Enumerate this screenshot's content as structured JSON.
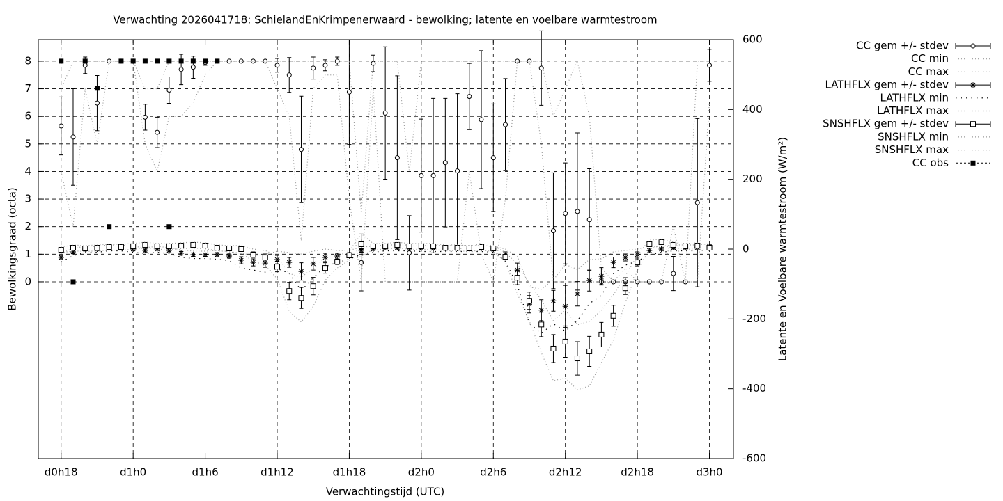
{
  "chart_data": {
    "type": "line",
    "title": "Verwachting 2026041718: SchielandEnKrimpenerwaard - bewolking; latente en voelbare warmtestroom",
    "x_label": "Verwachtingstijd (UTC)",
    "y_label": "Bewolkingsgraad (octa)",
    "y2_label": "Latente en Voelbare warmtestroom (W/m²)",
    "x": [
      18,
      19,
      20,
      21,
      22,
      23,
      24,
      25,
      26,
      27,
      28,
      29,
      30,
      31,
      32,
      33,
      34,
      35,
      36,
      37,
      38,
      39,
      40,
      41,
      42,
      43,
      44,
      45,
      46,
      47,
      48,
      49,
      50,
      51,
      52,
      53,
      54,
      55,
      56,
      57,
      58,
      59,
      60,
      61,
      62,
      63,
      64,
      65,
      66,
      67,
      68,
      69,
      70,
      71,
      72
    ],
    "xlim": [
      16.1,
      74
    ],
    "ylim": [
      -6.41,
      8.78
    ],
    "y2lim": [
      -600,
      600
    ],
    "xticks": [
      {
        "value": 18,
        "label": "d0h18"
      },
      {
        "value": 24,
        "label": "d1h0"
      },
      {
        "value": 30,
        "label": "d1h6"
      },
      {
        "value": 36,
        "label": "d1h12"
      },
      {
        "value": 42,
        "label": "d1h18"
      },
      {
        "value": 48,
        "label": "d2h0"
      },
      {
        "value": 54,
        "label": "d2h6"
      },
      {
        "value": 60,
        "label": "d2h12"
      },
      {
        "value": 66,
        "label": "d2h18"
      },
      {
        "value": 72,
        "label": "d3h0"
      }
    ],
    "yticks": [
      0,
      1,
      2,
      3,
      4,
      5,
      6,
      7,
      8
    ],
    "y2ticks": [
      -600,
      -400,
      -200,
      0,
      200,
      400,
      600
    ],
    "grid": true,
    "legend": "right",
    "series": [
      {
        "name": "CC gem +/- stdev",
        "color": "#000000",
        "style": "errorbars-circle",
        "values": [
          5.65,
          5.25,
          7.85,
          6.48,
          8,
          8,
          8,
          5.97,
          5.42,
          6.95,
          7.7,
          7.78,
          7.95,
          8,
          8,
          8,
          8,
          8,
          7.85,
          7.5,
          4.8,
          7.75,
          7.85,
          8,
          6.88,
          0.7,
          7.92,
          6.12,
          4.5,
          1.05,
          3.85,
          3.85,
          4.32,
          4.02,
          6.72,
          5.88,
          4.5,
          5.7,
          8,
          8,
          7.75,
          1.85,
          2.48,
          2.55,
          2.25,
          0,
          0,
          0,
          0,
          0,
          0,
          0.3,
          0,
          2.87,
          7.85
        ],
        "errors": [
          1.05,
          1.75,
          0.3,
          1.0,
          0,
          0,
          0,
          0.47,
          0.55,
          0.48,
          0.55,
          0.4,
          0.1,
          0,
          0,
          0,
          0,
          0,
          0.25,
          0.63,
          1.93,
          0.4,
          0.2,
          0.15,
          1.9,
          1.03,
          0.3,
          2.4,
          2.97,
          1.35,
          2.05,
          2.8,
          2.33,
          2.8,
          1.2,
          2.5,
          1.95,
          1.67,
          0,
          0,
          1.35,
          2.1,
          1.83,
          2.85,
          1.85,
          0.1,
          0,
          0.15,
          0,
          0,
          0,
          0.62,
          0,
          3.05,
          0.58
        ]
      },
      {
        "name": "CC min",
        "color": "#999999",
        "style": "dotted",
        "values": [
          4,
          2,
          7,
          5,
          8,
          8,
          8,
          5,
          4,
          6,
          6,
          6.5,
          7.5,
          8,
          8,
          8,
          8,
          8,
          7,
          6,
          1.5,
          7,
          7.5,
          7.5,
          3,
          0,
          7,
          0,
          0,
          0,
          0,
          0,
          0,
          0,
          4,
          1,
          0,
          3,
          8,
          8,
          5,
          0,
          0,
          0,
          0,
          0,
          0,
          0,
          0,
          0,
          0,
          0,
          0,
          0,
          6.5
        ]
      },
      {
        "name": "CC max",
        "color": "#999999",
        "style": "dotted",
        "values": [
          7,
          8,
          8,
          8,
          8,
          8,
          8,
          7,
          7,
          8,
          8,
          8,
          8,
          8,
          8,
          8,
          8,
          8,
          8,
          8,
          8,
          8,
          8,
          8,
          8,
          2.5,
          8,
          8,
          8,
          4,
          8,
          8,
          8,
          8,
          8,
          8,
          8,
          8,
          8,
          8,
          8,
          6,
          7,
          8,
          6,
          0.5,
          0,
          0.5,
          0,
          0,
          0,
          2,
          0,
          8,
          8
        ]
      },
      {
        "name": "LATHFLX gem +/- stdev",
        "color": "#000000",
        "style": "errorbars-star",
        "axis": "y2",
        "values": [
          -24,
          -8,
          0,
          0,
          4,
          4,
          0,
          -4,
          0,
          -4,
          -12,
          -16,
          -16,
          -16,
          -20,
          -32,
          -38,
          -40,
          -30,
          -38,
          -64,
          -42,
          -24,
          -20,
          -16,
          -4,
          0,
          4,
          4,
          4,
          2,
          2,
          2,
          2,
          2,
          2,
          0,
          -16,
          -60,
          -158,
          -175,
          -148,
          -164,
          -128,
          -90,
          -78,
          -38,
          -24,
          -16,
          -4,
          0,
          4,
          4,
          4,
          8
        ],
        "errors": [
          6,
          5,
          4,
          4,
          4,
          4,
          4,
          4,
          4,
          4,
          5,
          5,
          5,
          6,
          6,
          10,
          10,
          12,
          12,
          14,
          25,
          18,
          12,
          8,
          6,
          5,
          4,
          4,
          4,
          4,
          4,
          4,
          4,
          4,
          4,
          4,
          4,
          8,
          20,
          25,
          30,
          30,
          60,
          35,
          30,
          25,
          15,
          10,
          8,
          6,
          4,
          4,
          4,
          4,
          4
        ]
      },
      {
        "name": "LATHFLX min",
        "color": "#000000",
        "style": "dotted-sparse",
        "axis": "y2",
        "values": [
          -37,
          -19,
          -9,
          -9,
          -5,
          -5,
          -9,
          -13,
          -9,
          -13,
          -23,
          -27,
          -27,
          -29,
          -33,
          -54,
          -60,
          -66,
          -56,
          -69,
          -119,
          -82,
          -50,
          -38,
          -29,
          -15,
          -9,
          -5,
          -5,
          -5,
          -7,
          -7,
          -7,
          -7,
          -7,
          -7,
          -9,
          -34,
          -104,
          -213,
          -241,
          -214,
          -235,
          -205,
          -156,
          -133,
          -71,
          -46,
          -34,
          -17,
          -9,
          -5,
          -5,
          -5,
          -1
        ]
      },
      {
        "name": "LATHFLX max",
        "color": "#999999",
        "style": "dotted",
        "axis": "y2",
        "values": [
          -12,
          2,
          8,
          8,
          12,
          12,
          8,
          4,
          8,
          4,
          -2,
          -6,
          -6,
          -4,
          -8,
          -12,
          -18,
          -16,
          -6,
          -10,
          -14,
          -6,
          0,
          -4,
          -4,
          6,
          8,
          12,
          12,
          12,
          10,
          10,
          10,
          10,
          10,
          10,
          8,
          0,
          -20,
          -108,
          -115,
          -88,
          -44,
          -58,
          -30,
          -28,
          -8,
          -4,
          0,
          8,
          8,
          12,
          12,
          12,
          16
        ]
      },
      {
        "name": "SNSHFLX gem +/- stdev",
        "color": "#000000",
        "style": "errorbars-square",
        "axis": "y2",
        "values": [
          -2,
          4,
          2,
          4,
          6,
          6,
          8,
          12,
          8,
          8,
          10,
          12,
          10,
          4,
          2,
          0,
          -16,
          -24,
          -50,
          -120,
          -140,
          -106,
          -54,
          -36,
          -18,
          14,
          8,
          8,
          12,
          8,
          8,
          8,
          4,
          4,
          2,
          6,
          2,
          -22,
          -82,
          -148,
          -216,
          -285,
          -265,
          -313,
          -293,
          -245,
          -191,
          -112,
          -38,
          14,
          20,
          12,
          8,
          10,
          4
        ],
        "errors": [
          4,
          4,
          4,
          4,
          4,
          4,
          4,
          4,
          4,
          4,
          4,
          4,
          4,
          4,
          4,
          5,
          8,
          10,
          15,
          25,
          30,
          25,
          15,
          8,
          6,
          15,
          4,
          4,
          4,
          4,
          4,
          4,
          4,
          4,
          4,
          4,
          4,
          6,
          20,
          25,
          35,
          40,
          45,
          48,
          43,
          35,
          30,
          18,
          10,
          6,
          4,
          4,
          4,
          4,
          4
        ]
      },
      {
        "name": "SNSHFLX min",
        "color": "#999999",
        "style": "dotted",
        "axis": "y2",
        "values": [
          -11,
          -5,
          -7,
          -5,
          -3,
          -3,
          -1,
          3,
          -1,
          -1,
          1,
          3,
          1,
          -5,
          -7,
          -12,
          -34,
          -47,
          -85,
          -178,
          -209,
          -164,
          -89,
          -54,
          -32,
          -21,
          -1,
          -1,
          3,
          -1,
          -1,
          -1,
          -5,
          -5,
          -7,
          -3,
          -7,
          -36,
          -128,
          -206,
          -297,
          -377,
          -369,
          -403,
          -392,
          -326,
          -260,
          -153,
          -61,
          0,
          11,
          3,
          -1,
          1,
          -5
        ]
      },
      {
        "name": "SNSHFLX max",
        "color": "#999999",
        "style": "dotted",
        "axis": "y2",
        "values": [
          6,
          12,
          10,
          12,
          14,
          14,
          16,
          20,
          16,
          16,
          18,
          20,
          18,
          12,
          10,
          10,
          0,
          -4,
          -20,
          -70,
          -80,
          -56,
          -24,
          -20,
          -6,
          44,
          16,
          16,
          20,
          16,
          16,
          16,
          12,
          12,
          10,
          14,
          10,
          -10,
          -42,
          -98,
          -146,
          -205,
          -175,
          -217,
          -207,
          -175,
          -131,
          -76,
          -18,
          26,
          28,
          20,
          16,
          18,
          12
        ]
      },
      {
        "name": "CC obs",
        "color": "#000000",
        "style": "points-filled-square",
        "x": [
          18,
          19,
          20,
          21,
          22,
          23,
          24,
          25,
          26,
          27,
          27,
          28,
          29,
          30,
          31
        ],
        "values": [
          8,
          0,
          8,
          7.02,
          2,
          8,
          8,
          8,
          8,
          8,
          2,
          8,
          8,
          8,
          8
        ]
      }
    ]
  }
}
